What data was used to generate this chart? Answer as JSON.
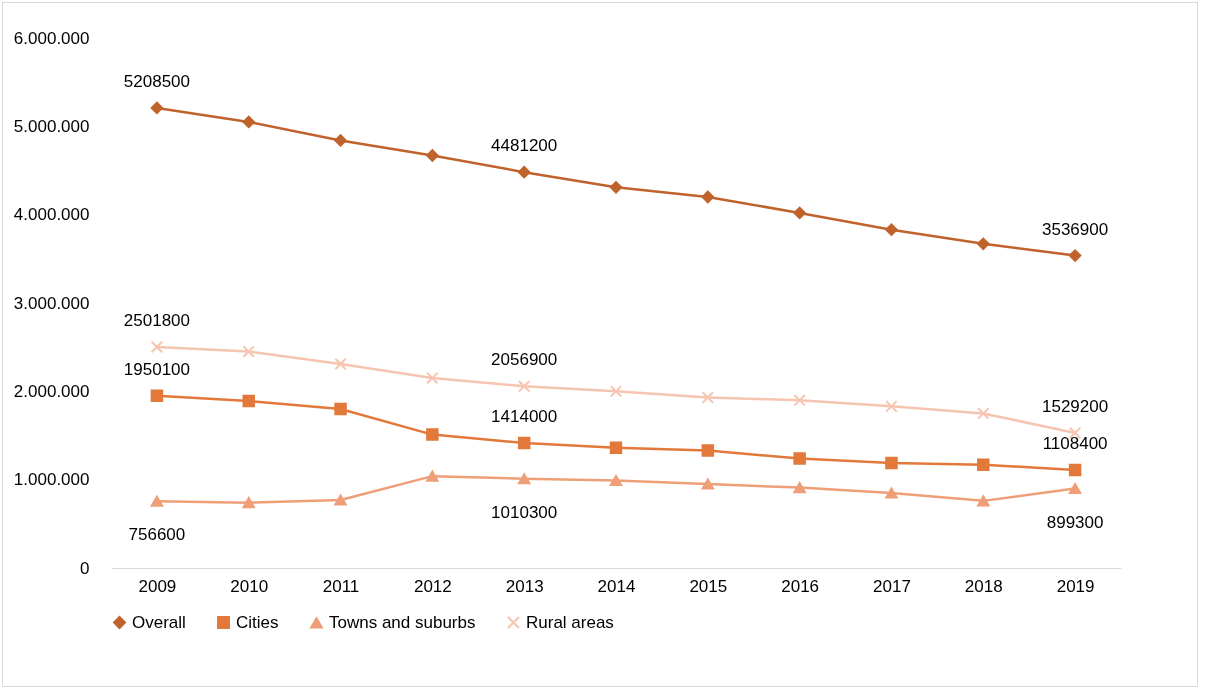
{
  "chart_data": {
    "type": "line",
    "categories": [
      "2009",
      "2010",
      "2011",
      "2012",
      "2013",
      "2014",
      "2015",
      "2016",
      "2017",
      "2018",
      "2019"
    ],
    "series": [
      {
        "name": "Overall",
        "color": "#c0622b",
        "marker": "diamond",
        "values": [
          5208500,
          5050000,
          4840000,
          4670000,
          4481200,
          4310000,
          4200000,
          4020000,
          3830000,
          3670000,
          3536900
        ],
        "value_labels": [
          "5208500",
          null,
          null,
          null,
          "4481200",
          null,
          null,
          null,
          null,
          null,
          "3536900"
        ]
      },
      {
        "name": "Cities",
        "color": "#e2793a",
        "marker": "square",
        "values": [
          1950100,
          1890000,
          1800000,
          1510000,
          1414000,
          1360000,
          1330000,
          1240000,
          1190000,
          1170000,
          1108400
        ],
        "value_labels": [
          "1950100",
          null,
          null,
          null,
          "1414000",
          null,
          null,
          null,
          null,
          null,
          "1108400"
        ]
      },
      {
        "name": "Towns and suburbs",
        "color": "#ef9f78",
        "marker": "triangle",
        "values": [
          756600,
          740000,
          770000,
          1040000,
          1010300,
          990000,
          950000,
          910000,
          850000,
          760000,
          899300
        ],
        "value_labels": [
          "756600",
          null,
          null,
          null,
          "1010300",
          null,
          null,
          null,
          null,
          null,
          "899300"
        ]
      },
      {
        "name": "Rural areas",
        "color": "#f5c5b0",
        "marker": "cross",
        "values": [
          2501800,
          2450000,
          2310000,
          2150000,
          2056900,
          2000000,
          1930000,
          1900000,
          1830000,
          1750000,
          1529200
        ],
        "value_labels": [
          "2501800",
          null,
          null,
          null,
          "2056900",
          null,
          null,
          null,
          null,
          null,
          "1529200"
        ]
      }
    ],
    "ylim": [
      0,
      6000000
    ],
    "yticks": [
      0,
      {
        "value": 1000000,
        "label": "1.000.000"
      },
      {
        "value": 2000000,
        "label": "2.000.000"
      },
      {
        "value": 3000000,
        "label": "3.000.000"
      },
      {
        "value": 4000000,
        "label": "4.000.000"
      },
      {
        "value": 5000000,
        "label": "5.000.000"
      },
      {
        "value": 6000000,
        "label": "6.000.000"
      }
    ],
    "grid": false,
    "legend": "bottom",
    "line_style": "solid"
  }
}
